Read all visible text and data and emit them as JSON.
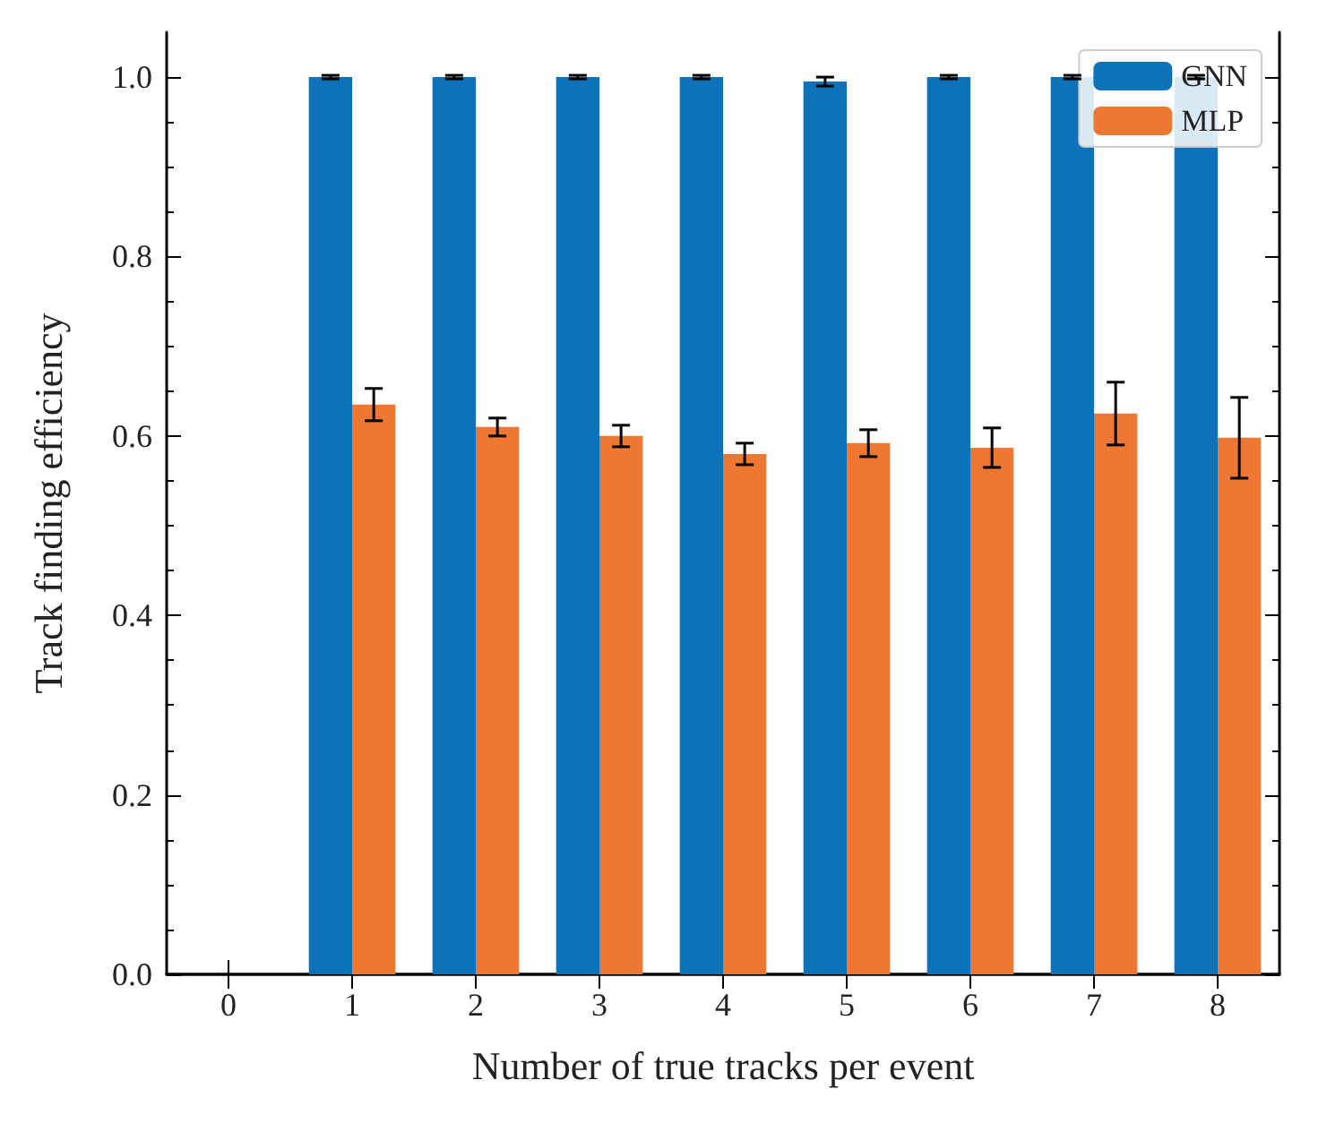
{
  "chart_data": {
    "type": "bar",
    "xlabel": "Number of true tracks per event",
    "ylabel": "Track finding efficiency",
    "categories": [
      "0",
      "1",
      "2",
      "3",
      "4",
      "5",
      "6",
      "7",
      "8"
    ],
    "series": [
      {
        "name": "GNN",
        "color": "#0c72b9",
        "values": [
          null,
          1.0,
          1.0,
          1.0,
          1.0,
          0.995,
          1.0,
          1.0,
          1.0
        ],
        "errors": [
          null,
          0.002,
          0.002,
          0.002,
          0.002,
          0.005,
          0.002,
          0.002,
          0.002
        ]
      },
      {
        "name": "MLP",
        "color": "#ee7733",
        "values": [
          null,
          0.635,
          0.61,
          0.6,
          0.58,
          0.592,
          0.587,
          0.625,
          0.598
        ],
        "errors": [
          null,
          0.018,
          0.01,
          0.012,
          0.012,
          0.015,
          0.022,
          0.035,
          0.045
        ]
      }
    ],
    "ylim": [
      0,
      1.05
    ],
    "yticks": [
      {
        "value": 0,
        "label": "0.0"
      },
      {
        "value": 0.2,
        "label": "0.2"
      },
      {
        "value": 0.4,
        "label": "0.4"
      },
      {
        "value": 0.6,
        "label": "0.6"
      },
      {
        "value": 0.8,
        "label": "0.8"
      },
      {
        "value": 1,
        "label": "1.0"
      }
    ],
    "grid": false,
    "legend": "top right"
  }
}
